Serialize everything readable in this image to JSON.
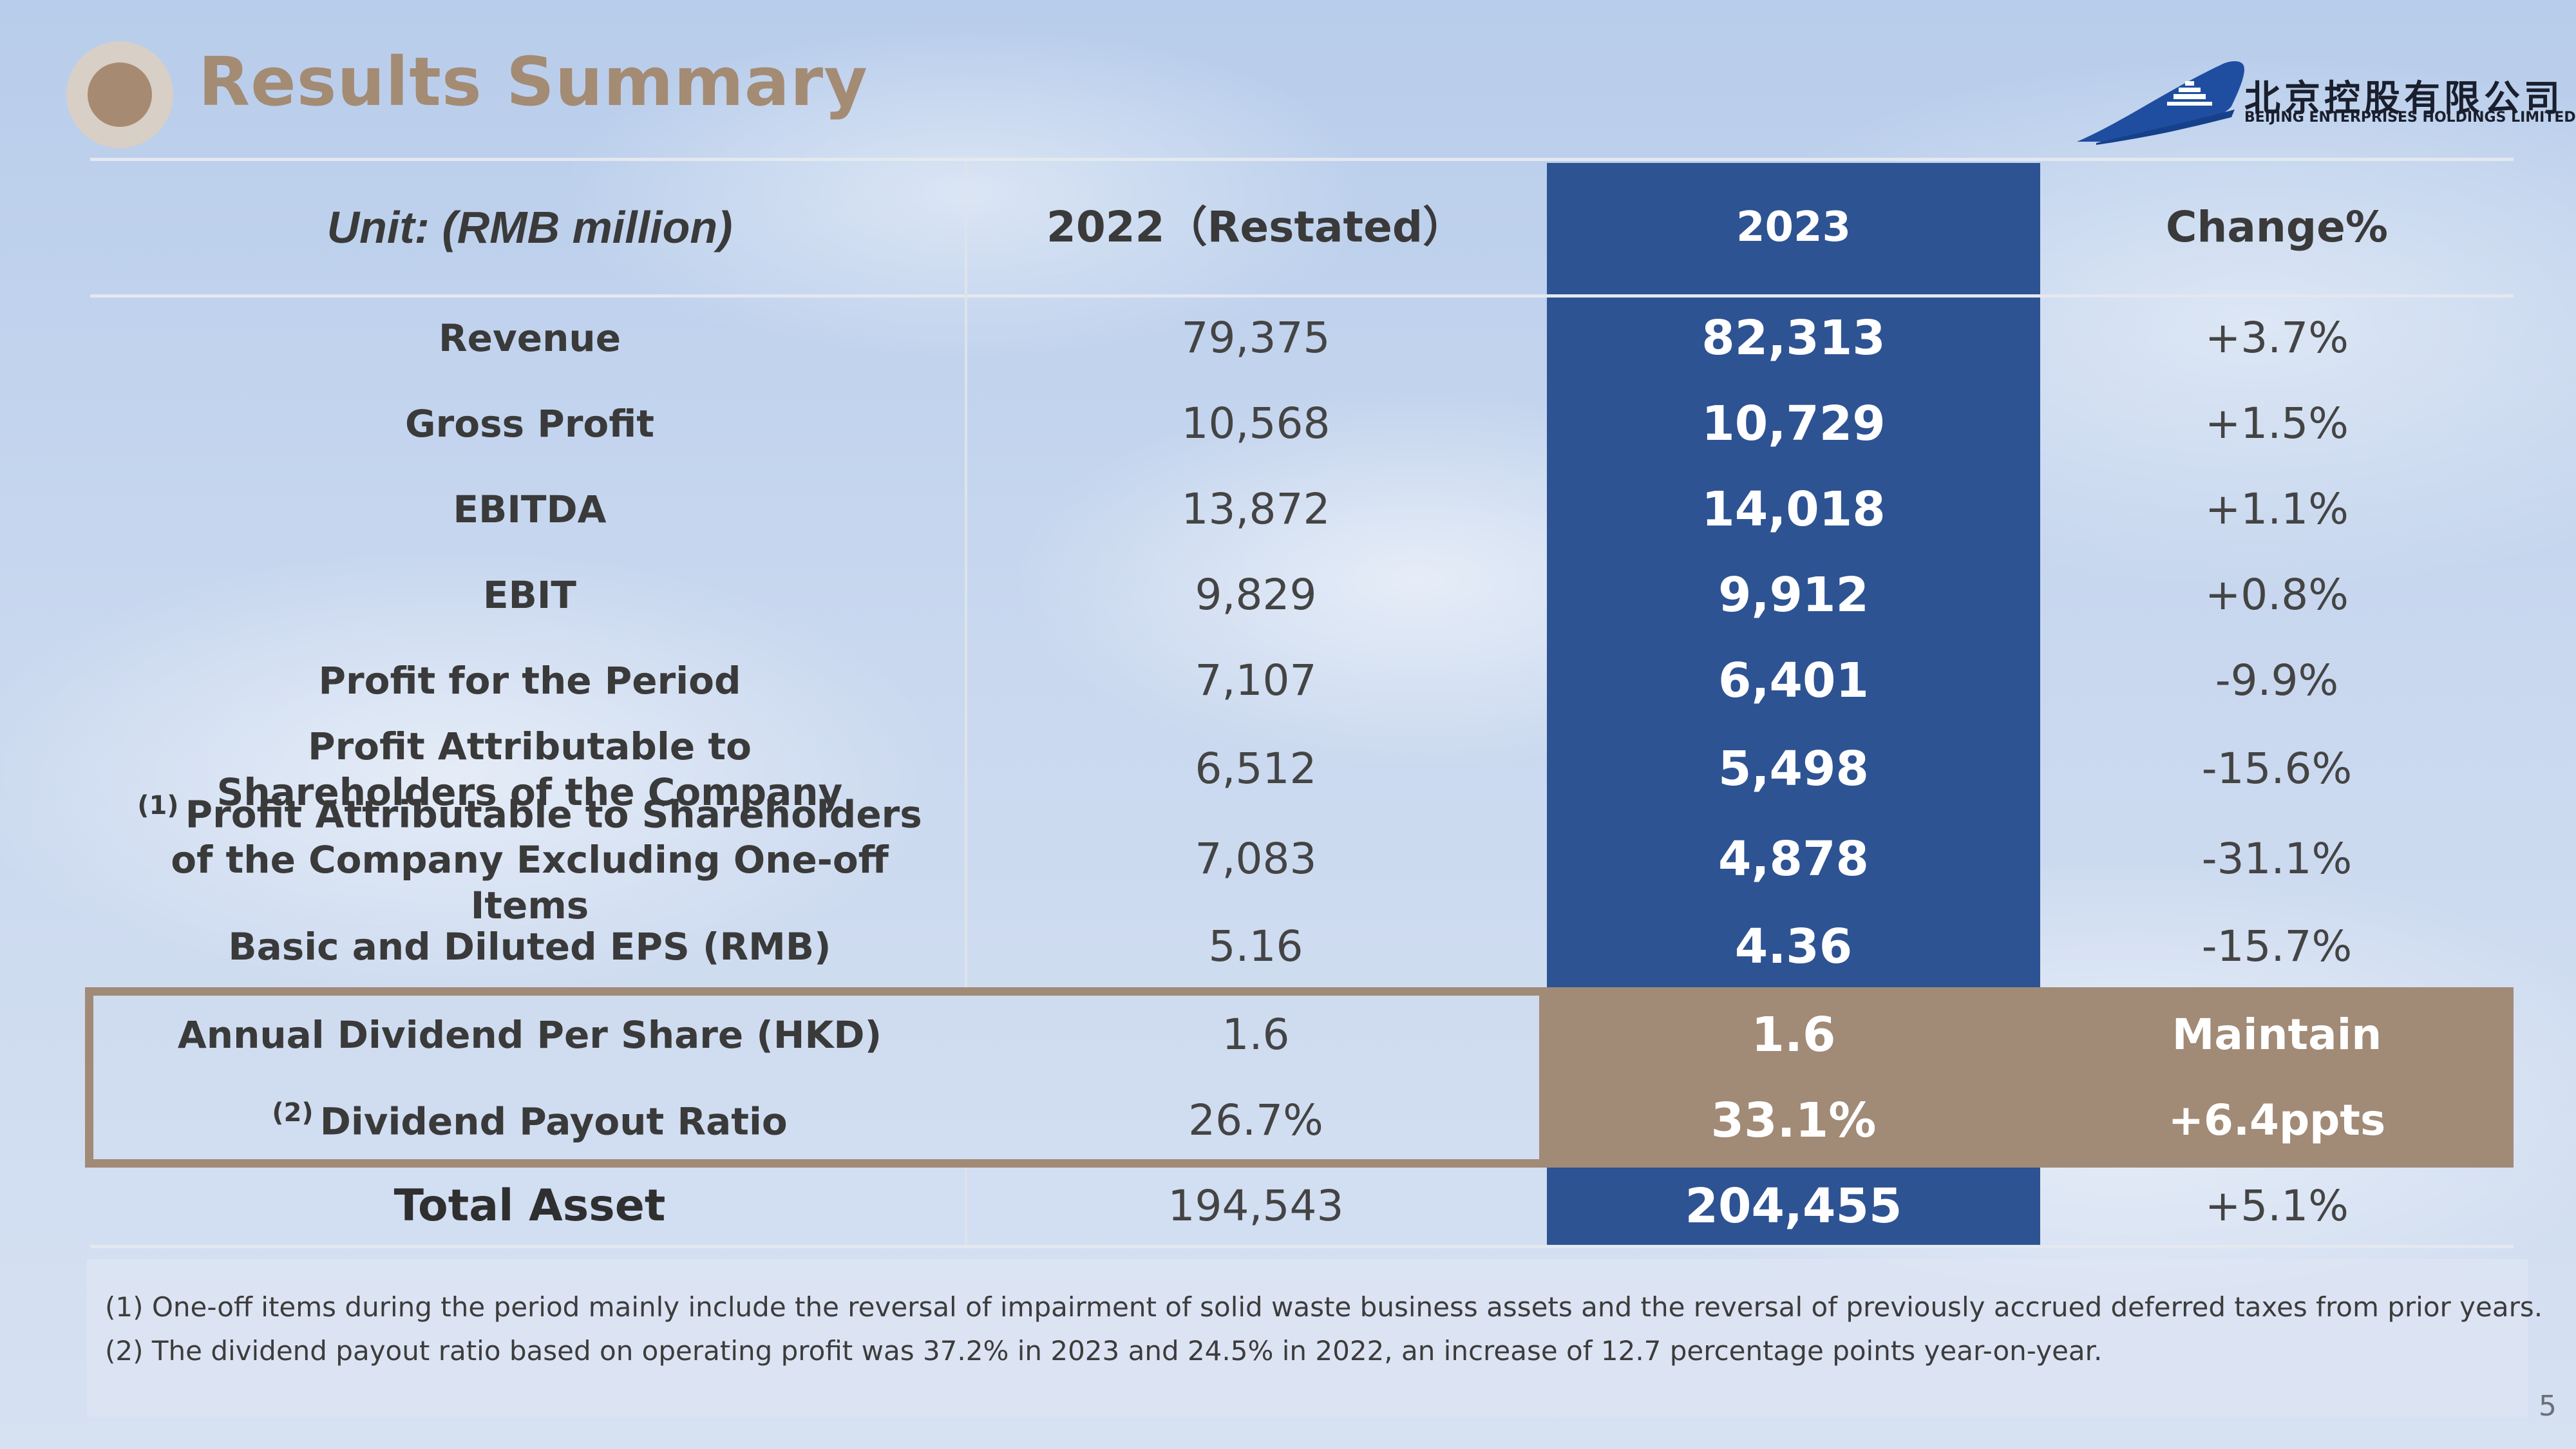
{
  "header": {
    "title": "Results Summary",
    "logo_cn": "北京控股有限公司",
    "logo_en": "BEIJING ENTERPRISES HOLDINGS LIMITED"
  },
  "table": {
    "columns": [
      "Unit: (RMB million)",
      "2022（Restated）",
      "2023",
      "Change%"
    ],
    "rows": [
      {
        "label": "Revenue",
        "note": "",
        "y2022": "79,375",
        "y2023": "82,313",
        "change": "+3.7%"
      },
      {
        "label": "Gross Profit",
        "note": "",
        "y2022": "10,568",
        "y2023": "10,729",
        "change": "+1.5%"
      },
      {
        "label": "EBITDA",
        "note": "",
        "y2022": "13,872",
        "y2023": "14,018",
        "change": "+1.1%"
      },
      {
        "label": "EBIT",
        "note": "",
        "y2022": "9,829",
        "y2023": "9,912",
        "change": "+0.8%"
      },
      {
        "label": "Profit for the Period",
        "note": "",
        "y2022": "7,107",
        "y2023": "6,401",
        "change": "-9.9%"
      },
      {
        "label": "Profit Attributable to Shareholders of the Company",
        "note": "",
        "y2022": "6,512",
        "y2023": "5,498",
        "change": "-15.6%"
      },
      {
        "label": "Profit Attributable to Shareholders of the Company Excluding One-off Items",
        "note": "(1)",
        "y2022": "7,083",
        "y2023": "4,878",
        "change": "-31.1%"
      },
      {
        "label": "Basic and Diluted EPS (RMB)",
        "note": "",
        "y2022": "5.16",
        "y2023": "4.36",
        "change": "-15.7%"
      },
      {
        "label": "Annual Dividend Per Share (HKD)",
        "note": "",
        "y2022": "1.6",
        "y2023": "1.6",
        "change": "Maintain"
      },
      {
        "label": "Dividend Payout Ratio",
        "note": "(2)",
        "y2022": "26.7%",
        "y2023": "33.1%",
        "change": "+6.4ppts"
      },
      {
        "label": "Total Asset",
        "note": "",
        "y2022": "194,543",
        "y2023": "204,455",
        "change": "+5.1%"
      }
    ]
  },
  "footnotes": [
    {
      "marker": "(1)",
      "text": "One-off items during the period mainly include the reversal of impairment of solid waste business assets and the reversal of previously accrued deferred taxes from prior years."
    },
    {
      "marker": "(2)",
      "text": "The dividend payout ratio based on operating profit was 37.2% in 2023 and 24.5% in 2022, an increase of 12.7 percentage points year-on-year."
    }
  ],
  "page_number": "5",
  "colors": {
    "highlight_blue": "#2d5393",
    "accent_brown": "#a18a76",
    "title_brown": "#a48b74"
  }
}
